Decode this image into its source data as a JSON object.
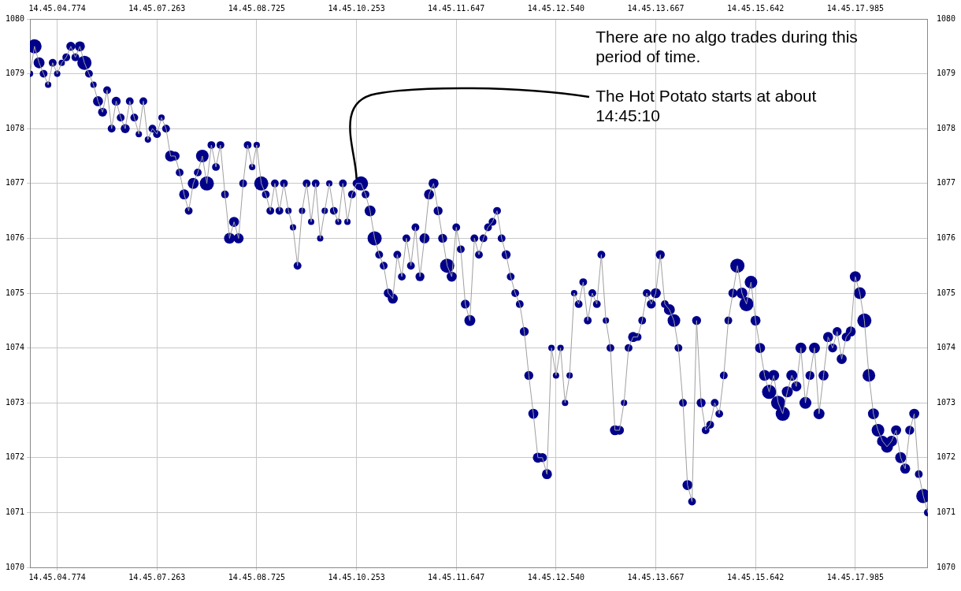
{
  "chart_data": {
    "type": "bubble",
    "annotations": [
      "There are no algo trades during this period of time.",
      {
        "text": "The Hot Potato starts at about 14:45:10",
        "x": "14.45.10.253",
        "y": 1077
      }
    ],
    "categories": [
      null,
      null,
      null,
      null,
      null,
      null,
      "14.45.04.774",
      null,
      null,
      null,
      null,
      null,
      null,
      null,
      null,
      null,
      null,
      null,
      null,
      null,
      null,
      null,
      null,
      null,
      null,
      null,
      null,
      null,
      "14.45.07.263",
      null,
      null,
      null,
      null,
      null,
      null,
      null,
      null,
      null,
      null,
      null,
      null,
      null,
      null,
      null,
      null,
      null,
      null,
      null,
      null,
      null,
      "14.45.08.725",
      null,
      null,
      null,
      null,
      null,
      null,
      null,
      null,
      null,
      null,
      null,
      null,
      null,
      null,
      null,
      null,
      null,
      null,
      null,
      null,
      null,
      "14.45.10.253",
      null,
      null,
      null,
      null,
      null,
      null,
      null,
      null,
      null,
      null,
      null,
      null,
      null,
      null,
      null,
      null,
      null,
      null,
      null,
      null,
      null,
      "14.45.11.647",
      null,
      null,
      null,
      null,
      null,
      null,
      null,
      null,
      null,
      null,
      null,
      null,
      null,
      null,
      null,
      null,
      null,
      null,
      null,
      null,
      null,
      "14.45.12.540",
      null,
      null,
      null,
      null,
      null,
      null,
      null,
      null,
      null,
      null,
      null,
      null,
      null,
      null,
      null,
      null,
      null,
      null,
      null,
      null,
      null,
      "14.45.13.667",
      null,
      null,
      null,
      null,
      null,
      null,
      null,
      null,
      null,
      null,
      null,
      null,
      null,
      null,
      null,
      null,
      null,
      null,
      null,
      null,
      null,
      "14.45.15.642",
      null,
      null,
      null,
      null,
      null,
      null,
      null,
      null,
      null,
      null,
      null,
      null,
      null,
      null,
      null,
      null,
      null,
      null,
      null,
      null,
      null,
      "14.45.17.985",
      null,
      null,
      null,
      null,
      null,
      null,
      null,
      null,
      null,
      null,
      null,
      null,
      null,
      null,
      null,
      null
    ],
    "series": [
      {
        "type": "line",
        "color": "#a0a0a0",
        "marker": "none",
        "values": [
          1079.0,
          1079.5,
          1079.2,
          1079.0,
          1078.8,
          1079.2,
          1079.0,
          1079.2,
          1079.3,
          1079.5,
          1079.3,
          1079.5,
          1079.2,
          1079.0,
          1078.8,
          1078.5,
          1078.3,
          1078.7,
          1078.0,
          1078.5,
          1078.2,
          1078.0,
          1078.5,
          1078.2,
          1077.9,
          1078.5,
          1077.8,
          1078.0,
          1077.9,
          1078.2,
          1078.0,
          1077.5,
          1077.5,
          1077.2,
          1076.8,
          1076.5,
          1077.0,
          1077.2,
          1077.5,
          1077.0,
          1077.7,
          1077.3,
          1077.7,
          1076.8,
          1076.0,
          1076.3,
          1076.0,
          1077.0,
          1077.7,
          1077.3,
          1077.7,
          1077.0,
          1076.8,
          1076.5,
          1077.0,
          1076.5,
          1077.0,
          1076.5,
          1076.2,
          1075.5,
          1076.5,
          1077.0,
          1076.3,
          1077.0,
          1076.0,
          1076.5,
          1077.0,
          1076.5,
          1076.3,
          1077.0,
          1076.3,
          1076.8,
          1077.0,
          1077.0,
          1076.8,
          1076.5,
          1076.0,
          1075.7,
          1075.5,
          1075.0,
          1074.9,
          1075.7,
          1075.3,
          1076.0,
          1075.5,
          1076.2,
          1075.3,
          1076.0,
          1076.8,
          1077.0,
          1076.5,
          1076.0,
          1075.5,
          1075.3,
          1076.2,
          1075.8,
          1074.8,
          1074.5,
          1076.0,
          1075.7,
          1076.0,
          1076.2,
          1076.3,
          1076.5,
          1076.0,
          1075.7,
          1075.3,
          1075.0,
          1074.8,
          1074.3,
          1073.5,
          1072.8,
          1072.0,
          1072.0,
          1071.7,
          1074.0,
          1073.5,
          1074.0,
          1073.0,
          1073.5,
          1075.0,
          1074.8,
          1075.2,
          1074.5,
          1075.0,
          1074.8,
          1075.7,
          1074.5,
          1074.0,
          1072.5,
          1072.5,
          1073.0,
          1074.0,
          1074.2,
          1074.2,
          1074.5,
          1075.0,
          1074.8,
          1075.0,
          1075.7,
          1074.8,
          1074.7,
          1074.5,
          1074.0,
          1073.0,
          1071.5,
          1071.2,
          1074.5,
          1073.0,
          1072.5,
          1072.6,
          1073.0,
          1072.8,
          1073.5,
          1074.5,
          1075.0,
          1075.5,
          1075.0,
          1074.8,
          1075.2,
          1074.5,
          1074.0,
          1073.5,
          1073.2,
          1073.5,
          1073.0,
          1072.8,
          1073.2,
          1073.5,
          1073.3,
          1074.0,
          1073.0,
          1073.5,
          1074.0,
          1072.8,
          1073.5,
          1074.2,
          1074.0,
          1074.3,
          1073.8,
          1074.2,
          1074.3,
          1075.3,
          1075.0,
          1074.5,
          1073.5,
          1072.8,
          1072.5,
          1072.3,
          1072.2,
          1072.3,
          1072.5,
          1072.0,
          1071.8,
          1072.5,
          1072.8,
          1071.7,
          1071.3,
          1071.0
        ]
      },
      {
        "color": "#00008b",
        "values": [
          1079.0,
          1079.5,
          1079.2,
          1079.0,
          1078.8,
          1079.2,
          1079.0,
          1079.2,
          1079.3,
          1079.5,
          1079.3,
          1079.5,
          1079.2,
          1079.0,
          1078.8,
          1078.5,
          1078.3,
          1078.7,
          1078.0,
          1078.5,
          1078.2,
          1078.0,
          1078.5,
          1078.2,
          1077.9,
          1078.5,
          1077.8,
          1078.0,
          1077.9,
          1078.2,
          1078.0,
          1077.5,
          1077.5,
          1077.2,
          1076.8,
          1076.5,
          1077.0,
          1077.2,
          1077.5,
          1077.0,
          1077.7,
          1077.3,
          1077.7,
          1076.8,
          1076.0,
          1076.3,
          1076.0,
          1077.0,
          1077.7,
          1077.3,
          1077.7,
          1077.0,
          1076.8,
          1076.5,
          1077.0,
          1076.5,
          1077.0,
          1076.5,
          1076.2,
          1075.5,
          1076.5,
          1077.0,
          1076.3,
          1077.0,
          1076.0,
          1076.5,
          1077.0,
          1076.5,
          1076.3,
          1077.0,
          1076.3,
          1076.8,
          1077.0,
          1077.0,
          1076.8,
          1076.5,
          1076.0,
          1075.7,
          1075.5,
          1075.0,
          1074.9,
          1075.7,
          1075.3,
          1076.0,
          1075.5,
          1076.2,
          1075.3,
          1076.0,
          1076.8,
          1077.0,
          1076.5,
          1076.0,
          1075.5,
          1075.3,
          1076.2,
          1075.8,
          1074.8,
          1074.5,
          1076.0,
          1075.7,
          1076.0,
          1076.2,
          1076.3,
          1076.5,
          1076.0,
          1075.7,
          1075.3,
          1075.0,
          1074.8,
          1074.3,
          1073.5,
          1072.8,
          1072.0,
          1072.0,
          1071.7,
          1074.0,
          1073.5,
          1074.0,
          1073.0,
          1073.5,
          1075.0,
          1074.8,
          1075.2,
          1074.5,
          1075.0,
          1074.8,
          1075.7,
          1074.5,
          1074.0,
          1072.5,
          1072.5,
          1073.0,
          1074.0,
          1074.2,
          1074.2,
          1074.5,
          1075.0,
          1074.8,
          1075.0,
          1075.7,
          1074.8,
          1074.7,
          1074.5,
          1074.0,
          1073.0,
          1071.5,
          1071.2,
          1074.5,
          1073.0,
          1072.5,
          1072.6,
          1073.0,
          1072.8,
          1073.5,
          1074.5,
          1075.0,
          1075.5,
          1075.0,
          1074.8,
          1075.2,
          1074.5,
          1074.0,
          1073.5,
          1073.2,
          1073.5,
          1073.0,
          1072.8,
          1073.2,
          1073.5,
          1073.3,
          1074.0,
          1073.0,
          1073.5,
          1074.0,
          1072.8,
          1073.5,
          1074.2,
          1074.0,
          1074.3,
          1073.8,
          1074.2,
          1074.3,
          1075.3,
          1075.0,
          1074.5,
          1073.5,
          1072.8,
          1072.5,
          1072.3,
          1072.2,
          1072.3,
          1072.5,
          1072.0,
          1071.8,
          1072.5,
          1072.8,
          1071.7,
          1071.3,
          1071.0
        ],
        "sizes": [
          0.2,
          1,
          0.6,
          0.3,
          0.2,
          0.3,
          0.2,
          0.2,
          0.3,
          0.4,
          0.3,
          0.5,
          1,
          0.3,
          0.2,
          0.5,
          0.4,
          0.3,
          0.3,
          0.4,
          0.3,
          0.4,
          0.3,
          0.3,
          0.2,
          0.3,
          0.2,
          0.3,
          0.3,
          0.2,
          0.3,
          0.6,
          0.4,
          0.3,
          0.5,
          0.3,
          0.6,
          0.3,
          0.8,
          1,
          0.3,
          0.3,
          0.3,
          0.3,
          0.6,
          0.5,
          0.5,
          0.3,
          0.3,
          0.2,
          0.2,
          1,
          0.3,
          0.3,
          0.3,
          0.3,
          0.3,
          0.2,
          0.2,
          0.3,
          0.2,
          0.3,
          0.2,
          0.3,
          0.2,
          0.2,
          0.2,
          0.3,
          0.2,
          0.3,
          0.2,
          0.3,
          0.3,
          1,
          0.3,
          0.6,
          1,
          0.3,
          0.3,
          0.4,
          0.5,
          0.3,
          0.3,
          0.3,
          0.3,
          0.3,
          0.4,
          0.5,
          0.5,
          0.5,
          0.4,
          0.4,
          1,
          0.5,
          0.3,
          0.3,
          0.4,
          0.6,
          0.3,
          0.3,
          0.3,
          0.3,
          0.3,
          0.3,
          0.3,
          0.4,
          0.3,
          0.3,
          0.3,
          0.4,
          0.4,
          0.5,
          0.5,
          0.4,
          0.5,
          0.2,
          0.2,
          0.2,
          0.2,
          0.2,
          0.2,
          0.3,
          0.3,
          0.3,
          0.3,
          0.3,
          0.3,
          0.2,
          0.3,
          0.5,
          0.4,
          0.2,
          0.3,
          0.5,
          0.3,
          0.3,
          0.3,
          0.4,
          0.5,
          0.4,
          0.3,
          0.6,
          0.8,
          0.3,
          0.3,
          0.5,
          0.3,
          0.4,
          0.4,
          0.3,
          0.3,
          0.3,
          0.3,
          0.3,
          0.3,
          0.4,
          1,
          0.6,
          1,
          0.8,
          0.5,
          0.5,
          0.6,
          1,
          0.6,
          1,
          1,
          0.6,
          0.6,
          0.5,
          0.6,
          0.7,
          0.4,
          0.6,
          0.6,
          0.5,
          0.5,
          0.4,
          0.4,
          0.5,
          0.4,
          0.5,
          0.6,
          0.7,
          1,
          0.8,
          0.6,
          0.8,
          0.6,
          0.7,
          0.6,
          0.5,
          0.6,
          0.5,
          0.4,
          0.5,
          0.3,
          1,
          0.3
        ]
      }
    ],
    "ylim": [
      1070,
      1080
    ],
    "yticks": [
      1070,
      1071,
      1072,
      1073,
      1074,
      1075,
      1076,
      1077,
      1078,
      1079,
      1080
    ],
    "y2lim": [
      1070,
      1080
    ],
    "y2ticks": [
      1070,
      1071,
      1072,
      1073,
      1074,
      1075,
      1076,
      1077,
      1078,
      1079,
      1080
    ],
    "grid": true,
    "legend": false
  }
}
